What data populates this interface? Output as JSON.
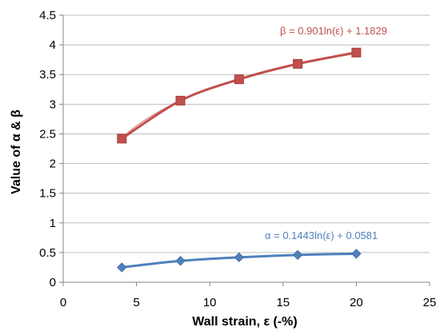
{
  "chart_data": {
    "type": "scatter",
    "xlabel": "Wall strain, ε (-%)",
    "ylabel": "Value of  α & β",
    "xlim": [
      0,
      25
    ],
    "ylim": [
      0,
      4.5
    ],
    "xticks": [
      "0",
      "5",
      "10",
      "15",
      "20",
      "25"
    ],
    "yticks": [
      "0",
      "0.5",
      "1",
      "1.5",
      "2",
      "2.5",
      "3",
      "3.5",
      "4",
      "4.5"
    ],
    "grid": "horizontal",
    "series": [
      {
        "name": "β",
        "color": "#c0504d",
        "marker": "square",
        "x": [
          4,
          8,
          12,
          16,
          20
        ],
        "y": [
          2.42,
          3.06,
          3.42,
          3.68,
          3.87
        ],
        "trendline": {
          "type": "logarithmic",
          "a": 0.901,
          "b": 1.1829,
          "label": "β = 0.901ln(ε) + 1.1829"
        }
      },
      {
        "name": "α",
        "color": "#4f81bd",
        "marker": "diamond",
        "x": [
          4,
          8,
          12,
          16,
          20
        ],
        "y": [
          0.25,
          0.36,
          0.42,
          0.46,
          0.48
        ],
        "trendline": {
          "type": "logarithmic",
          "a": 0.1443,
          "b": 0.0581,
          "label": "α = 0.1443ln(ε) + 0.0581"
        }
      }
    ]
  }
}
